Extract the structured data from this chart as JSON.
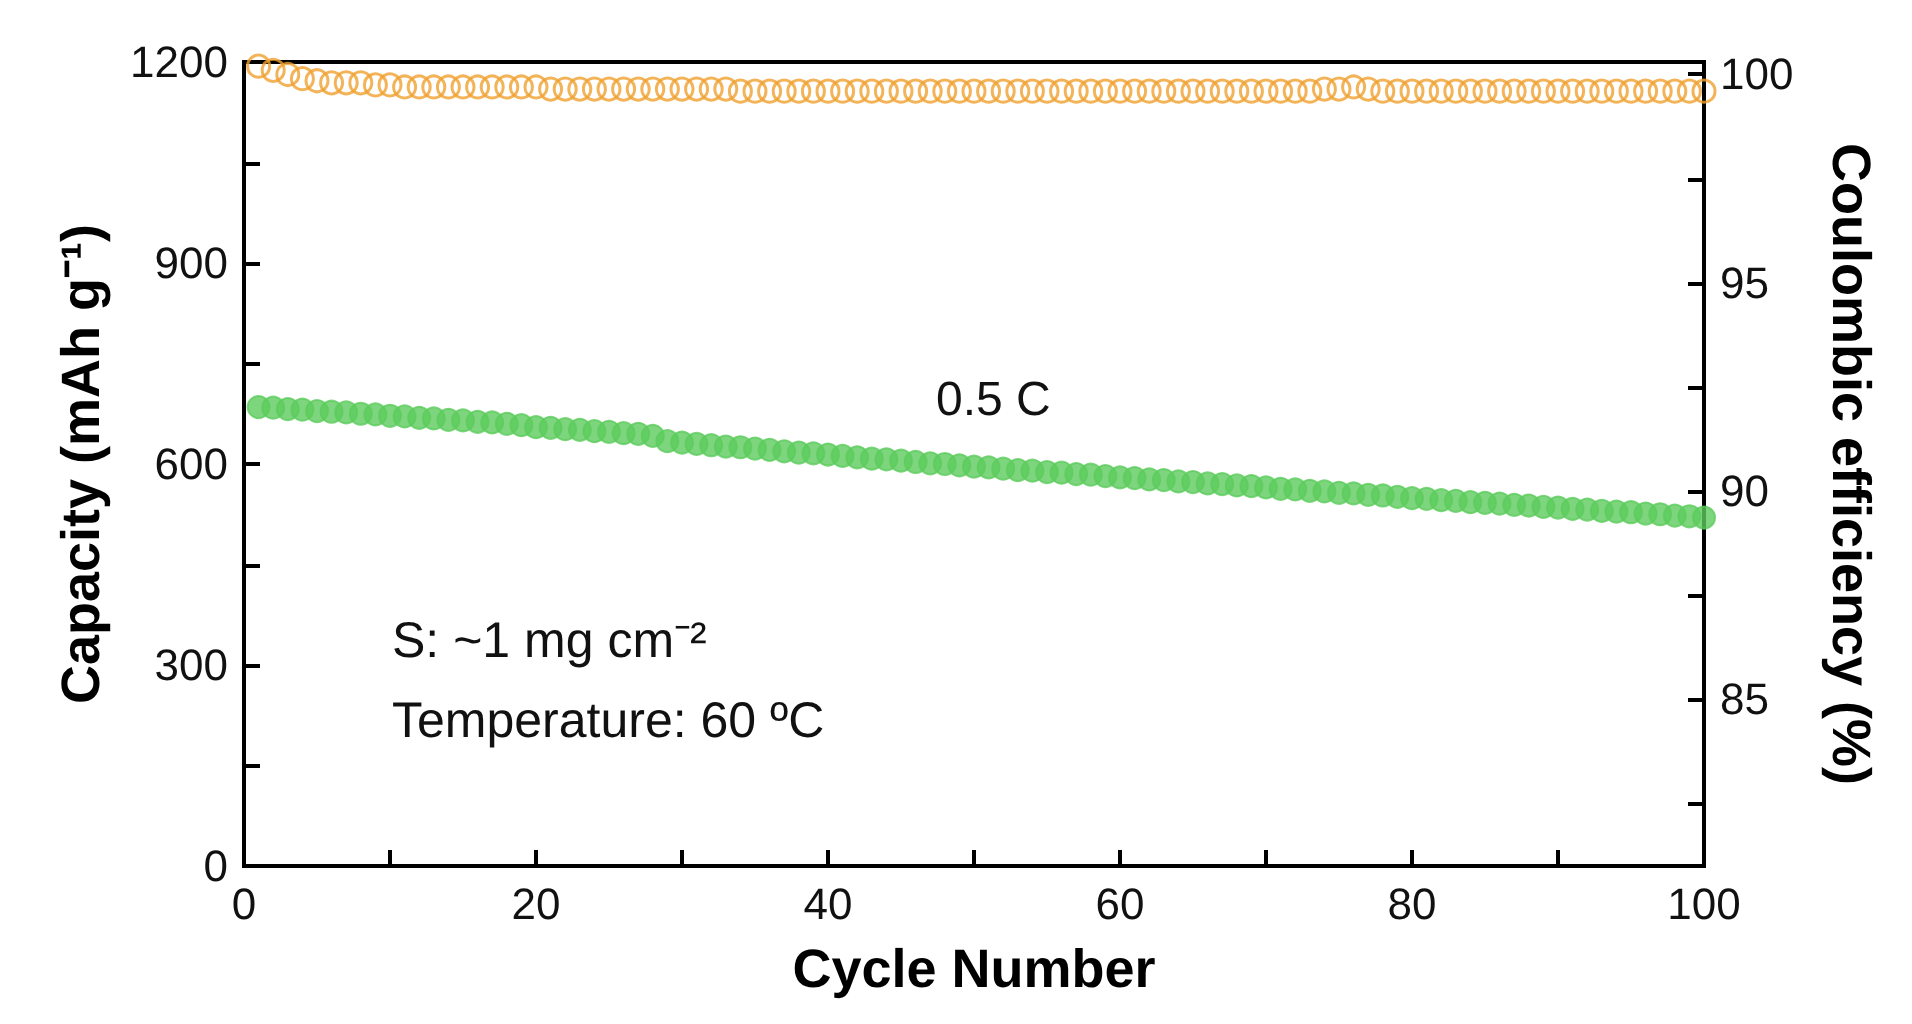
{
  "chart_data": {
    "type": "scatter",
    "xlabel": "Cycle Number",
    "ylabel": "Capacity (mAh g⁻¹)",
    "y2label": "Coulombic efficiency (%)",
    "x": [
      1,
      2,
      3,
      4,
      5,
      6,
      7,
      8,
      9,
      10,
      11,
      12,
      13,
      14,
      15,
      16,
      17,
      18,
      19,
      20,
      21,
      22,
      23,
      24,
      25,
      26,
      27,
      28,
      29,
      30,
      31,
      32,
      33,
      34,
      35,
      36,
      37,
      38,
      39,
      40,
      41,
      42,
      43,
      44,
      45,
      46,
      47,
      48,
      49,
      50,
      51,
      52,
      53,
      54,
      55,
      56,
      57,
      58,
      59,
      60,
      61,
      62,
      63,
      64,
      65,
      66,
      67,
      68,
      69,
      70,
      71,
      72,
      73,
      74,
      75,
      76,
      77,
      78,
      79,
      80,
      81,
      82,
      83,
      84,
      85,
      86,
      87,
      88,
      89,
      90,
      91,
      92,
      93,
      94,
      95,
      96,
      97,
      98,
      99,
      100
    ],
    "series": [
      {
        "color": "#5ccc5c",
        "values": [
          685,
          684,
          682,
          681,
          679,
          678,
          677,
          675,
          674,
          672,
          671,
          669,
          668,
          666,
          665,
          663,
          662,
          660,
          658,
          655,
          654,
          652,
          651,
          649,
          648,
          646,
          645,
          642,
          634,
          632,
          630,
          628,
          626,
          625,
          623,
          621,
          619,
          617,
          616,
          614,
          612,
          610,
          608,
          607,
          605,
          603,
          601,
          600,
          598,
          596,
          595,
          593,
          591,
          590,
          588,
          587,
          585,
          584,
          582,
          580,
          579,
          577,
          576,
          574,
          573,
          571,
          570,
          568,
          567,
          565,
          563,
          562,
          560,
          559,
          557,
          556,
          554,
          553,
          551,
          549,
          548,
          546,
          545,
          543,
          542,
          541,
          539,
          538,
          536,
          535,
          533,
          532,
          530,
          529,
          528,
          526,
          525,
          523,
          522,
          520
        ]
      },
      {
        "color": "#f0a030",
        "axis": "y2",
        "values": [
          100.2,
          100.1,
          100.0,
          99.9,
          99.85,
          99.8,
          99.8,
          99.8,
          99.75,
          99.75,
          99.7,
          99.7,
          99.7,
          99.7,
          99.7,
          99.7,
          99.7,
          99.7,
          99.7,
          99.7,
          99.65,
          99.65,
          99.65,
          99.65,
          99.65,
          99.65,
          99.65,
          99.65,
          99.65,
          99.65,
          99.65,
          99.65,
          99.65,
          99.6,
          99.6,
          99.6,
          99.6,
          99.6,
          99.6,
          99.6,
          99.6,
          99.6,
          99.6,
          99.6,
          99.6,
          99.6,
          99.6,
          99.6,
          99.6,
          99.6,
          99.6,
          99.6,
          99.6,
          99.6,
          99.6,
          99.6,
          99.6,
          99.6,
          99.6,
          99.6,
          99.6,
          99.6,
          99.6,
          99.6,
          99.6,
          99.6,
          99.6,
          99.6,
          99.6,
          99.6,
          99.6,
          99.6,
          99.6,
          99.65,
          99.65,
          99.7,
          99.65,
          99.6,
          99.6,
          99.6,
          99.6,
          99.6,
          99.6,
          99.6,
          99.6,
          99.6,
          99.6,
          99.6,
          99.6,
          99.6,
          99.6,
          99.6,
          99.6,
          99.6,
          99.6,
          99.6,
          99.6,
          99.6,
          99.6,
          99.6
        ]
      }
    ],
    "xlim": [
      0,
      100
    ],
    "xticks": [
      0,
      {
        "value": 10,
        "label": null
      },
      20,
      {
        "value": 30,
        "label": null
      },
      40,
      {
        "value": 50,
        "label": null
      },
      60,
      {
        "value": 70,
        "label": null
      },
      80,
      {
        "value": 90,
        "label": null
      },
      100
    ],
    "ylim": [
      0,
      1200
    ],
    "yticks": [
      0,
      {
        "value": 150,
        "label": null
      },
      300,
      {
        "value": 450,
        "label": null
      },
      600,
      {
        "value": 750,
        "label": null
      },
      900,
      {
        "value": 1050,
        "label": null
      },
      1200
    ],
    "y2lim": [
      81,
      100.3
    ],
    "y2ticks": [
      {
        "value": 82.5,
        "label": null
      },
      85,
      {
        "value": 87.5,
        "label": null
      },
      90,
      {
        "value": 92.5,
        "label": null
      },
      95,
      {
        "value": 97.5,
        "label": null
      },
      100
    ],
    "marker": "circle",
    "annotations": [
      "0.5 C",
      "S: ~1 mg cm⁻²",
      "Temperature: 60 ºC"
    ]
  }
}
